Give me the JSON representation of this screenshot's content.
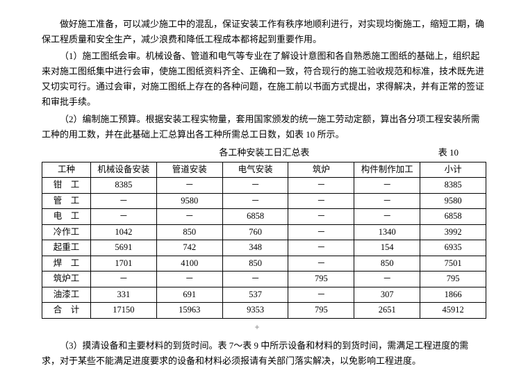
{
  "paragraphs": {
    "p0": "做好施工准备，可以减少施工中的混乱，保证安装工作有秩序地顺利进行，对实现均衡施工，缩短工期，确保工程质量和安全生产，减少浪费和降低工程成本都将起到重要作用。",
    "p1": "（1）施工图纸会审。机械设备、管道和电气等专业在了解设计意图和各自熟悉施工图纸的基础上，组织起来对施工图纸集中进行会审，使施工图纸资料齐全、正确和一致，符合现行的施工验收规范和标准，技术既先进又切实可行。通过会审，对施工图纸上存在的各种问题，在施工前以书面方式提出，求得解决，并有正常的签证和审批手续。",
    "p2": "（2）编制施工预算。根据安装工程实物量，套用国家颁发的统一施工劳动定额，算出各分项工程安装所需工种的用工数，并在此基础上汇总算出各工种所需总工日数，如表 10 所示。",
    "p3": "（3）摸清设备和主要材料的到货时间。表 7～表 9 中所示设备和材料的到货时间，需满足工程进度的需求，对于某些不能满足进度要求的设备和材料必须报请有关部门落实解决，以免影响工程进度。"
  },
  "table": {
    "title": "各工种安装工日汇总表",
    "number": "表 10",
    "headers": [
      "工种",
      "机械设备安装",
      "管道安装",
      "电气安装",
      "筑炉",
      "构件制作加工",
      "小计"
    ],
    "rows": [
      {
        "label": "钳　工",
        "cells": [
          "8385",
          "－",
          "－",
          "－",
          "－",
          "8385"
        ]
      },
      {
        "label": "管　工",
        "cells": [
          "－",
          "9580",
          "－",
          "－",
          "－",
          "9580"
        ]
      },
      {
        "label": "电　工",
        "cells": [
          "－",
          "－",
          "6858",
          "－",
          "－",
          "6858"
        ]
      },
      {
        "label": "冷作工",
        "cells": [
          "1042",
          "850",
          "760",
          "－",
          "1340",
          "3992"
        ]
      },
      {
        "label": "起重工",
        "cells": [
          "5691",
          "742",
          "348",
          "－",
          "154",
          "6935"
        ]
      },
      {
        "label": "焊　工",
        "cells": [
          "1701",
          "4100",
          "850",
          "－",
          "850",
          "7501"
        ]
      },
      {
        "label": "筑炉工",
        "cells": [
          "－",
          "－",
          "－",
          "795",
          "－",
          "795"
        ]
      },
      {
        "label": "油漆工",
        "cells": [
          "331",
          "691",
          "537",
          "－",
          "307",
          "1866"
        ]
      },
      {
        "label": "合　计",
        "cells": [
          "17150",
          "15963",
          "9353",
          "795",
          "2651",
          "45912"
        ]
      }
    ]
  },
  "tabHandle": "+"
}
